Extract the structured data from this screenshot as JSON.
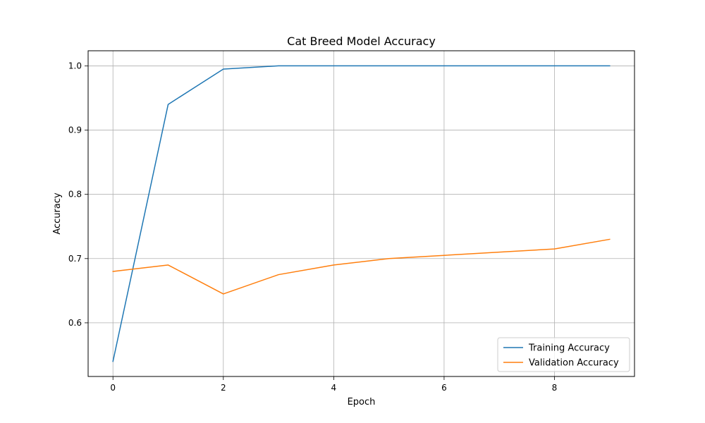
{
  "chart_data": {
    "type": "line",
    "title": "Cat Breed Model Accuracy",
    "xlabel": "Epoch",
    "ylabel": "Accuracy",
    "xlim": [
      -0.45,
      9.45
    ],
    "ylim": [
      0.5165,
      1.0235
    ],
    "xticks": [
      0,
      2,
      4,
      6,
      8
    ],
    "xtick_labels": [
      "0",
      "2",
      "4",
      "6",
      "8"
    ],
    "yticks": [
      0.6,
      0.7,
      0.8,
      0.9,
      1.0
    ],
    "ytick_labels": [
      "0.6",
      "0.7",
      "0.8",
      "0.9",
      "1.0"
    ],
    "grid": true,
    "legend_position": "lower-right",
    "x": [
      0,
      1,
      2,
      3,
      4,
      5,
      6,
      7,
      8,
      9
    ],
    "series": [
      {
        "name": "Training Accuracy",
        "color": "#1f77b4",
        "values": [
          0.54,
          0.94,
          0.995,
          1.0,
          1.0,
          1.0,
          1.0,
          1.0,
          1.0,
          1.0
        ]
      },
      {
        "name": "Validation Accuracy",
        "color": "#ff7f0e",
        "values": [
          0.68,
          0.69,
          0.645,
          0.675,
          0.69,
          0.7,
          0.705,
          0.71,
          0.715,
          0.73
        ]
      }
    ]
  }
}
